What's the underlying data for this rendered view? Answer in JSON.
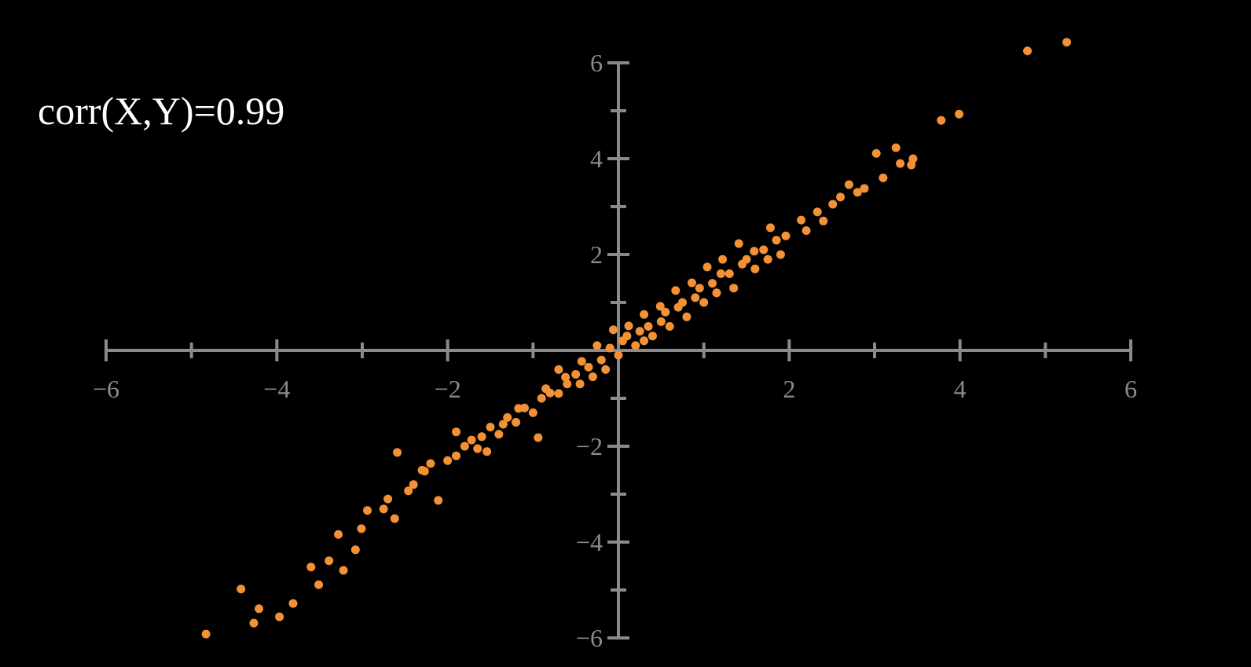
{
  "chart_data": {
    "type": "scatter",
    "annotation": "corr(X,Y)=0.99",
    "color": "#f39136",
    "axis_color": "#8a8a8a",
    "xlim": [
      -6,
      6
    ],
    "ylim": [
      -6,
      6
    ],
    "xticks": [
      {
        "value": -6,
        "label": "−6"
      },
      {
        "value": -4,
        "label": "−4"
      },
      {
        "value": -2,
        "label": "−2"
      },
      2,
      4,
      6
    ],
    "yticks": [
      {
        "value": -6,
        "label": "−6"
      },
      {
        "value": -4,
        "label": "−4"
      },
      {
        "value": -2,
        "label": "−2"
      },
      2,
      4,
      6
    ],
    "xminor_ticks": [
      -5,
      -3,
      -1,
      1,
      3,
      5
    ],
    "yminor_ticks": [
      -5,
      -3,
      -1,
      1,
      3,
      5
    ],
    "x": [
      -4.83,
      -4.42,
      -4.27,
      -4.21,
      -3.97,
      -3.81,
      -3.6,
      -3.51,
      -3.39,
      -3.22,
      -3.28,
      -3.08,
      -3.01,
      -2.94,
      -2.75,
      -2.59,
      -2.62,
      -2.46,
      -2.27,
      -2.11,
      -2.2,
      -1.9,
      -1.72,
      -1.54,
      -1.35,
      -1.17,
      -0.94,
      -0.8,
      -0.62,
      -0.43,
      -0.25,
      -0.06,
      0.12,
      0.3,
      0.49,
      0.67,
      0.86,
      1.04,
      1.22,
      1.41,
      1.59,
      1.78,
      1.96,
      2.14,
      2.33,
      2.51,
      2.7,
      2.88,
      3.02,
      3.25,
      3.43,
      3.78,
      3.99,
      4.79,
      5.25,
      -1.8,
      -1.6,
      -1.5,
      -1.4,
      -1.3,
      -1.2,
      -1.1,
      -1.0,
      -0.9,
      -0.85,
      -0.7,
      -0.6,
      -0.5,
      -0.45,
      -0.35,
      -0.3,
      -0.2,
      -0.15,
      -0.1,
      0,
      0.05,
      0.1,
      0.2,
      0.25,
      0.35,
      0.4,
      0.5,
      0.55,
      0.6,
      0.7,
      0.75,
      0.8,
      0.9,
      0.95,
      1.0,
      1.1,
      1.15,
      1.3,
      1.35,
      1.45,
      1.5,
      1.6,
      1.7,
      1.75,
      1.85,
      2.2,
      2.4,
      2.6,
      2.8,
      3.1,
      3.3,
      3.45,
      -2.0,
      -2.4,
      -2.7,
      -2.3,
      -1.9,
      -1.65,
      -0.7,
      0.3,
      1.2,
      1.9
    ],
    "values": [
      -5.92,
      -4.98,
      -5.69,
      -5.39,
      -5.56,
      -5.28,
      -4.52,
      -4.89,
      -4.39,
      -4.59,
      -3.84,
      -4.16,
      -3.72,
      -3.34,
      -3.31,
      -2.13,
      -3.51,
      -2.93,
      -2.52,
      -3.13,
      -2.36,
      -1.7,
      -1.87,
      -2.11,
      -1.54,
      -1.21,
      -1.82,
      -0.89,
      -0.56,
      -0.23,
      0.1,
      0.43,
      0.51,
      0.75,
      0.92,
      1.25,
      1.41,
      1.74,
      1.9,
      2.23,
      2.07,
      2.56,
      2.39,
      2.72,
      2.89,
      3.05,
      3.46,
      3.38,
      4.11,
      4.23,
      3.87,
      4.8,
      4.93,
      6.25,
      6.43,
      -2.0,
      -1.8,
      -1.6,
      -1.75,
      -1.4,
      -1.5,
      -1.2,
      -1.3,
      -1.0,
      -0.8,
      -0.9,
      -0.7,
      -0.5,
      -0.7,
      -0.35,
      -0.55,
      -0.2,
      -0.4,
      0.05,
      -0.1,
      0.2,
      0.3,
      0.1,
      0.4,
      0.5,
      0.3,
      0.6,
      0.8,
      0.5,
      0.9,
      1.0,
      0.7,
      1.1,
      1.3,
      1.0,
      1.4,
      1.2,
      1.6,
      1.3,
      1.8,
      1.9,
      1.7,
      2.1,
      1.9,
      2.3,
      2.5,
      2.7,
      3.2,
      3.3,
      3.6,
      3.9,
      4.0,
      -2.3,
      -2.8,
      -3.1,
      -2.5,
      -2.2,
      -2.05,
      -0.4,
      0.2,
      1.6,
      2.0
    ]
  }
}
